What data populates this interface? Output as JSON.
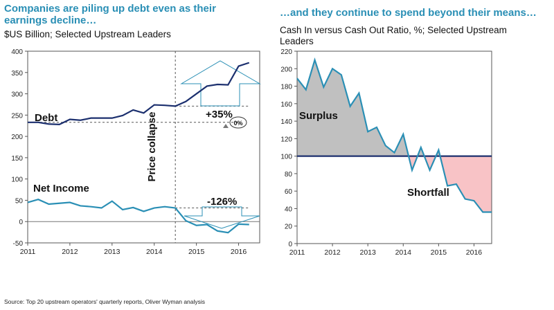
{
  "colors": {
    "title": "#2a8fb5",
    "debt": "#1b2f6e",
    "income": "#2a8fb5",
    "surplus": "#c0c0c0",
    "shortfall": "#f8c3c6",
    "baseline": "#1b2f6e"
  },
  "left": {
    "title": "Companies are piling up debt even as their earnings decline…",
    "title_l1": "Companies are piling up debt even as their",
    "title_l2": "earnings decline…",
    "subtitle": "$US Billion; Selected Upstream Leaders",
    "debt_label": "Debt",
    "income_label": "Net Income",
    "price_label": "Price collapse",
    "debt_change": "+35%",
    "income_change": "-126%",
    "zero_badge": "0%"
  },
  "right": {
    "title": "…and they continue to spend beyond their means…",
    "subtitle_l1": "Cash In versus Cash Out Ratio, %; Selected Upstream",
    "subtitle_l2": "Leaders",
    "surplus_label": "Surplus",
    "shortfall_label": "Shortfall"
  },
  "source": "Source: Top 20 upstream operators' quarterly reports, Oliver Wyman analysis",
  "chart_data": [
    {
      "type": "line",
      "title": "Companies are piling up debt even as their earnings decline…",
      "ylim": [
        -50,
        400
      ],
      "yticks": [
        -50,
        0,
        50,
        100,
        150,
        200,
        250,
        300,
        350,
        400
      ],
      "xlim": [
        2011,
        2016.5
      ],
      "xticks": [
        2011,
        2012,
        2013,
        2014,
        2015,
        2016
      ],
      "price_collapse_x": 2014.5,
      "series": [
        {
          "name": "Debt",
          "x": [
            2011,
            2011.25,
            2011.5,
            2011.75,
            2012,
            2012.25,
            2012.5,
            2012.75,
            2013,
            2013.25,
            2013.5,
            2013.75,
            2014,
            2014.25,
            2014.5,
            2014.75,
            2015,
            2015.25,
            2015.5,
            2015.75,
            2016,
            2016.25
          ],
          "values": [
            233,
            233,
            229,
            228,
            240,
            238,
            243,
            243,
            243,
            249,
            262,
            255,
            274,
            273,
            271,
            282,
            300,
            318,
            322,
            321,
            365,
            373
          ]
        },
        {
          "name": "Net Income",
          "x": [
            2011,
            2011.25,
            2011.5,
            2011.75,
            2012,
            2012.25,
            2012.5,
            2012.75,
            2013,
            2013.25,
            2013.5,
            2013.75,
            2014,
            2014.25,
            2014.5,
            2014.75,
            2015,
            2015.25,
            2015.5,
            2015.75,
            2016,
            2016.25
          ],
          "values": [
            45,
            52,
            41,
            43,
            45,
            37,
            35,
            32,
            48,
            28,
            33,
            24,
            32,
            35,
            32,
            2,
            -9,
            -7,
            -22,
            -26,
            -6,
            -7
          ]
        }
      ]
    },
    {
      "type": "area",
      "title": "…and they continue to spend beyond their means…",
      "ylim": [
        0,
        220
      ],
      "yticks": [
        0,
        20,
        40,
        60,
        80,
        100,
        120,
        140,
        160,
        180,
        200,
        220
      ],
      "xlim": [
        2011,
        2016.5
      ],
      "xticks": [
        2011,
        2012,
        2013,
        2014,
        2015,
        2016
      ],
      "baseline": 100,
      "series": [
        {
          "name": "Cash In versus Cash Out Ratio",
          "x": [
            2011,
            2011.25,
            2011.5,
            2011.75,
            2012,
            2012.25,
            2012.5,
            2012.75,
            2013,
            2013.25,
            2013.5,
            2013.75,
            2014,
            2014.25,
            2014.5,
            2014.75,
            2015,
            2015.25,
            2015.5,
            2015.75,
            2016,
            2016.25,
            2016.5
          ],
          "values": [
            189,
            176,
            210,
            179,
            200,
            193,
            157,
            172,
            128,
            133,
            112,
            104,
            125,
            84,
            110,
            84,
            107,
            66,
            68,
            51,
            49,
            36,
            36
          ]
        }
      ]
    }
  ]
}
